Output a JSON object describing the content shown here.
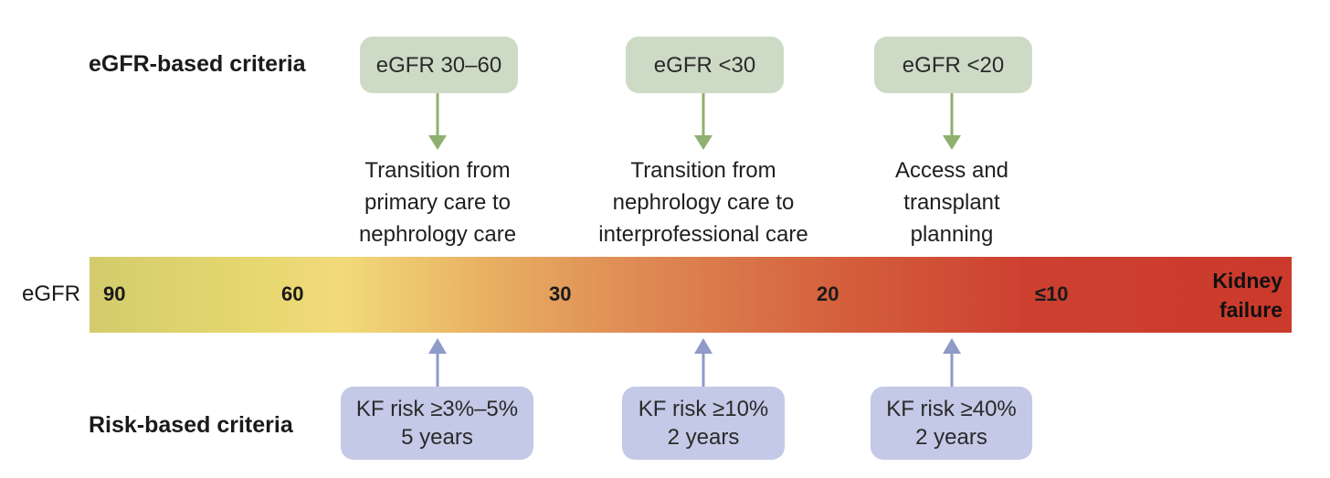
{
  "egfr_criteria": {
    "title": "eGFR-based criteria",
    "boxes": [
      "eGFR 30–60",
      "eGFR <30",
      "eGFR <20"
    ]
  },
  "transitions": [
    {
      "lines": [
        "Transition from",
        "primary care to",
        "nephrology care"
      ]
    },
    {
      "lines": [
        "Transition from",
        "nephrology care to",
        "interprofessional care"
      ]
    },
    {
      "lines": [
        "Access and",
        "transplant",
        "planning"
      ]
    }
  ],
  "scale": {
    "axis_label": "eGFR",
    "ticks": [
      "90",
      "60",
      "30",
      "20",
      "≤10"
    ],
    "end_label": [
      "Kidney",
      "failure"
    ]
  },
  "risk_criteria": {
    "title": "Risk-based criteria",
    "boxes": [
      {
        "risk": "KF risk ≥3%–5%",
        "period": "5 years"
      },
      {
        "risk": "KF risk ≥10%",
        "period": "2 years"
      },
      {
        "risk": "KF risk ≥40%",
        "period": "2 years"
      }
    ]
  },
  "colors": {
    "green_box": "#cddbc6",
    "green_arrow": "#8fb070",
    "blue_box": "#c3c9e6",
    "blue_arrow": "#8f9ac9",
    "bar_start": "#d3cc6c",
    "bar_end": "#cb3a2c"
  }
}
